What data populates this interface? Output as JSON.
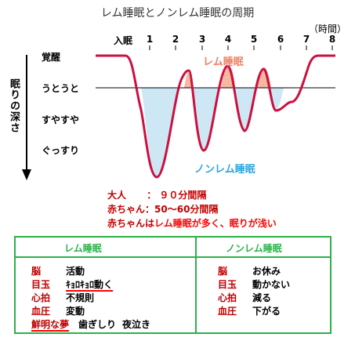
{
  "title": "レム睡眠とノンレム睡眠の周期",
  "hours_label": "（時間）",
  "hour_ticks": [
    "入眠",
    "1",
    "2",
    "3",
    "4",
    "5",
    "6",
    "7",
    "8"
  ],
  "depth_axis_label": "眠りの深さ",
  "levels": [
    "覚醒",
    "うとうと",
    "すやすや",
    "ぐっすり"
  ],
  "rem_label": "レム睡眠",
  "nrem_label": "ノンレム睡眠",
  "colors": {
    "curve": "#cc1040",
    "rem_fill": "#f5b8a0",
    "nrem_fill": "#cde7f5",
    "box_border": "#2cb14a"
  },
  "notes": [
    {
      "k": "大人",
      "sep": "：",
      "v": "９０分間隔"
    },
    {
      "k": "赤ちゃん",
      "sep": "：",
      "v": "50～60分間隔"
    }
  ],
  "note3": {
    "a": "赤ちゃんは",
    "b": "レム睡眠が多く、眠りが浅い"
  },
  "rem_box": {
    "title": "レム睡眠",
    "rows": [
      {
        "k": "脳",
        "v": "活動"
      },
      {
        "k": "目玉",
        "v": "ｷｮﾛｷｮﾛ動く"
      },
      {
        "k": "心拍",
        "v": "不規則"
      },
      {
        "k": "血圧",
        "v": "変動"
      }
    ],
    "last_row": {
      "a": "鮮明な夢",
      "b": "歯ぎしり",
      "c": "夜泣き"
    }
  },
  "nrem_box": {
    "title": "ノンレム睡眠",
    "rows": [
      {
        "k": "脳",
        "v": "お休み"
      },
      {
        "k": "目玉",
        "v": "動かない"
      },
      {
        "k": "心拍",
        "v": "減る"
      },
      {
        "k": "血圧",
        "v": "下がる"
      }
    ]
  }
}
